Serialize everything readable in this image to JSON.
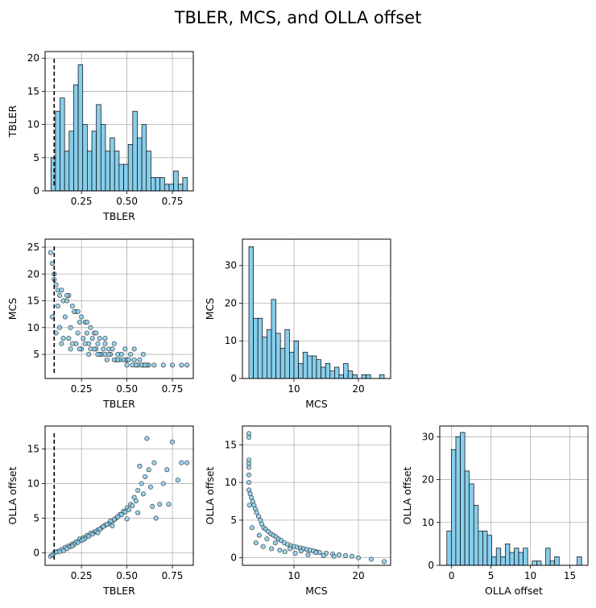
{
  "figure": {
    "title": "TBLER, MCS, and OLLA offset"
  },
  "colors": {
    "bar": "#87CEEB",
    "edge": "#000000",
    "grid": "#b0b0b0",
    "threshold": "#000000"
  },
  "chart_data": [
    {
      "id": "tbler_hist",
      "type": "bar",
      "title": "",
      "xlabel": "TBLER",
      "ylabel": "TBLER",
      "xlim": [
        0.05,
        0.865
      ],
      "ylim": [
        0,
        21
      ],
      "xticks": [
        0.25,
        0.5,
        0.75
      ],
      "xtick_labels": [
        "0.25",
        "0.50",
        "0.75"
      ],
      "yticks": [
        0,
        5,
        10,
        15,
        20
      ],
      "ytick_labels": [
        "0",
        "5",
        "10",
        "15",
        "20"
      ],
      "bin_edges": [
        0.082,
        0.107,
        0.132,
        0.157,
        0.182,
        0.207,
        0.232,
        0.257,
        0.282,
        0.307,
        0.332,
        0.357,
        0.382,
        0.407,
        0.432,
        0.457,
        0.482,
        0.507,
        0.532,
        0.557,
        0.582,
        0.607,
        0.632,
        0.657,
        0.682,
        0.707,
        0.732,
        0.757,
        0.782,
        0.807,
        0.832
      ],
      "counts": [
        5,
        12,
        14,
        6,
        9,
        16,
        19,
        10,
        6,
        9,
        13,
        10,
        6,
        8,
        6,
        4,
        4,
        7,
        12,
        8,
        10,
        6,
        2,
        2,
        2,
        1,
        1,
        3,
        1,
        2
      ],
      "threshold_x": 0.1,
      "grid": true
    },
    {
      "id": "tbler_vs_mcs",
      "type": "scatter",
      "xlabel": "TBLER",
      "ylabel": "MCS",
      "xlim": [
        0.05,
        0.865
      ],
      "ylim": [
        0.5,
        26.5
      ],
      "xticks": [
        0.25,
        0.5,
        0.75
      ],
      "xtick_labels": [
        "0.25",
        "0.50",
        "0.75"
      ],
      "yticks": [
        5,
        10,
        15,
        20,
        25
      ],
      "ytick_labels": [
        "5",
        "10",
        "15",
        "20",
        "25"
      ],
      "x": [
        0.08,
        0.09,
        0.1,
        0.11,
        0.12,
        0.13,
        0.15,
        0.18,
        0.2,
        0.22,
        0.25,
        0.27,
        0.3,
        0.32,
        0.35,
        0.38,
        0.4,
        0.45,
        0.5,
        0.55,
        0.6,
        0.65,
        0.7,
        0.75,
        0.8,
        0.83,
        0.1,
        0.14,
        0.17,
        0.21,
        0.24,
        0.28,
        0.31,
        0.34,
        0.37,
        0.42,
        0.47,
        0.52,
        0.57,
        0.62,
        0.12,
        0.16,
        0.19,
        0.23,
        0.26,
        0.29,
        0.33,
        0.36,
        0.41,
        0.44,
        0.49,
        0.54,
        0.59,
        0.09,
        0.13,
        0.18,
        0.22,
        0.27,
        0.32,
        0.38,
        0.43,
        0.48,
        0.53,
        0.58,
        0.11,
        0.15,
        0.2,
        0.25,
        0.3,
        0.35,
        0.4,
        0.46,
        0.51,
        0.56,
        0.61,
        0.14,
        0.19,
        0.24,
        0.29,
        0.34,
        0.39,
        0.45,
        0.5,
        0.55,
        0.6,
        0.17,
        0.23,
        0.28,
        0.33,
        0.38,
        0.43,
        0.49,
        0.54,
        0.59
      ],
      "y": [
        24,
        22,
        19,
        18,
        17,
        16,
        15,
        16,
        14,
        13,
        12,
        11,
        10,
        9,
        8,
        7,
        6,
        5,
        4,
        3,
        3,
        3,
        3,
        3,
        3,
        3,
        20,
        17,
        15,
        13,
        11,
        9,
        8,
        7,
        6,
        6,
        5,
        5,
        4,
        3,
        14,
        12,
        10,
        9,
        8,
        7,
        6,
        5,
        5,
        4,
        4,
        4,
        3,
        12,
        10,
        8,
        7,
        7,
        6,
        5,
        4,
        4,
        3,
        3,
        9,
        8,
        7,
        6,
        6,
        5,
        5,
        4,
        4,
        3,
        3,
        7,
        6,
        6,
        5,
        5,
        4,
        4,
        3,
        3,
        3,
        16,
        13,
        11,
        9,
        8,
        7,
        6,
        6,
        5
      ],
      "threshold_x": 0.1,
      "grid": true
    },
    {
      "id": "mcs_hist",
      "type": "bar",
      "xlabel": "MCS",
      "ylabel": "MCS",
      "xlim": [
        2,
        25
      ],
      "ylim": [
        0,
        37
      ],
      "xticks": [
        10,
        20
      ],
      "xtick_labels": [
        "10",
        "20"
      ],
      "yticks": [
        0,
        10,
        20,
        30
      ],
      "ytick_labels": [
        "0",
        "10",
        "20",
        "30"
      ],
      "bin_edges": [
        3,
        3.7,
        4.4,
        5.1,
        5.8,
        6.5,
        7.2,
        7.9,
        8.6,
        9.3,
        10.0,
        10.7,
        11.4,
        12.1,
        12.8,
        13.5,
        14.2,
        14.9,
        15.6,
        16.3,
        17.0,
        17.7,
        18.4,
        19.1,
        19.8,
        20.5,
        21.2,
        21.9,
        22.6,
        23.3,
        24.0
      ],
      "counts": [
        35,
        16,
        16,
        11,
        13,
        21,
        12,
        8,
        13,
        7,
        10,
        4,
        7,
        6,
        6,
        5,
        3,
        4,
        2,
        3,
        1,
        4,
        2,
        1,
        0,
        1,
        1,
        0,
        0,
        1
      ],
      "grid": true
    },
    {
      "id": "tbler_vs_olla",
      "type": "scatter",
      "xlabel": "TBLER",
      "ylabel": "OLLA offset",
      "xlim": [
        0.05,
        0.865
      ],
      "ylim": [
        -1.8,
        18.3
      ],
      "xticks": [
        0.25,
        0.5,
        0.75
      ],
      "xtick_labels": [
        "0.25",
        "0.50",
        "0.75"
      ],
      "yticks": [
        0,
        5,
        10,
        15
      ],
      "ytick_labels": [
        "0",
        "5",
        "10",
        "15"
      ],
      "x": [
        0.08,
        0.09,
        0.1,
        0.12,
        0.14,
        0.16,
        0.18,
        0.2,
        0.22,
        0.24,
        0.26,
        0.28,
        0.3,
        0.32,
        0.34,
        0.36,
        0.38,
        0.4,
        0.42,
        0.44,
        0.46,
        0.48,
        0.5,
        0.52,
        0.54,
        0.56,
        0.58,
        0.6,
        0.62,
        0.65,
        0.7,
        0.75,
        0.8,
        0.83,
        0.15,
        0.19,
        0.23,
        0.27,
        0.31,
        0.35,
        0.39,
        0.43,
        0.47,
        0.51,
        0.55,
        0.59,
        0.63,
        0.68,
        0.72,
        0.11,
        0.17,
        0.21,
        0.25,
        0.29,
        0.33,
        0.37,
        0.41,
        0.45,
        0.49,
        0.53,
        0.57,
        0.61,
        0.66,
        0.73,
        0.78,
        0.13,
        0.2,
        0.26,
        0.34,
        0.42,
        0.5,
        0.56,
        0.64
      ],
      "y": [
        -0.5,
        -0.3,
        0,
        0.2,
        0.5,
        0.8,
        1,
        1.3,
        1.6,
        2,
        2.2,
        2.5,
        2.8,
        3,
        3.3,
        3.6,
        4,
        4.2,
        4.5,
        5,
        5.5,
        6,
        6.5,
        7,
        8,
        9,
        10,
        11,
        12,
        13,
        10,
        16,
        13,
        13,
        0.3,
        0.9,
        1.5,
        2.1,
        2.7,
        3.4,
        4.1,
        4.8,
        5.5,
        6.2,
        7.5,
        8.5,
        9.5,
        7,
        12,
        0.1,
        0.6,
        1.2,
        1.8,
        2.4,
        3.1,
        3.8,
        4.6,
        5.2,
        5.9,
        6.8,
        12.5,
        16.5,
        5,
        7,
        10.5,
        0.2,
        1.0,
        1.9,
        2.9,
        3.9,
        4.9,
        5.8,
        6.7
      ],
      "threshold_x": 0.1,
      "grid": true
    },
    {
      "id": "mcs_vs_olla",
      "type": "scatter",
      "xlabel": "MCS",
      "ylabel": "OLLA offset",
      "xlim": [
        2,
        25
      ],
      "ylim": [
        -1.0,
        17.5
      ],
      "xticks": [
        10,
        20
      ],
      "xtick_labels": [
        "10",
        "20"
      ],
      "yticks": [
        0,
        5,
        10,
        15
      ],
      "ytick_labels": [
        "0",
        "5",
        "10",
        "15"
      ],
      "x": [
        3,
        3,
        3,
        3,
        3,
        3,
        3,
        3,
        3.2,
        3.4,
        3.6,
        3.8,
        4,
        4.2,
        4.5,
        4.8,
        5,
        5.3,
        5.6,
        6,
        6.4,
        6.8,
        7.2,
        7.6,
        8,
        8.5,
        9,
        9.5,
        10,
        10.5,
        11,
        11.5,
        12,
        12.5,
        13,
        13.5,
        14,
        15,
        16,
        17,
        18,
        19,
        20,
        22,
        24,
        3.1,
        3.5,
        4.1,
        4.6,
        5.2,
        5.8,
        6.5,
        7.1,
        7.8,
        8.6,
        9.4,
        10.2,
        11.1,
        12.2,
        13.4,
        14.6,
        16.2
      ],
      "y": [
        16.5,
        16,
        13,
        12.5,
        12,
        11,
        10,
        9,
        8.5,
        8,
        7.5,
        7,
        6.5,
        6,
        5.5,
        5,
        4.5,
        4,
        3.8,
        3.5,
        3.2,
        3,
        2.8,
        2.5,
        2.3,
        2,
        1.8,
        1.6,
        1.5,
        1.4,
        1.3,
        1.2,
        1.1,
        1,
        0.9,
        0.8,
        0.7,
        0.6,
        0.5,
        0.4,
        0.3,
        0.2,
        0,
        -0.2,
        -0.5,
        7,
        4,
        2,
        3,
        1.5,
        2.5,
        1.2,
        2,
        1,
        0.8,
        1.2,
        0.6,
        0.9,
        0.4,
        0.7,
        0.3,
        0.2
      ],
      "grid": true
    },
    {
      "id": "olla_hist",
      "type": "bar",
      "xlabel": "OLLA offset",
      "ylabel": "OLLA offset",
      "xlim": [
        -1.5,
        17.3
      ],
      "ylim": [
        0,
        32.5
      ],
      "xticks": [
        0,
        5,
        10,
        15
      ],
      "xtick_labels": [
        "0",
        "5",
        "10",
        "15"
      ],
      "yticks": [
        0,
        10,
        20,
        30
      ],
      "ytick_labels": [
        "0",
        "10",
        "20",
        "30"
      ],
      "bin_edges": [
        -0.6,
        -0.03,
        0.54,
        1.11,
        1.68,
        2.25,
        2.82,
        3.39,
        3.96,
        4.53,
        5.1,
        5.67,
        6.24,
        6.81,
        7.38,
        7.95,
        8.52,
        9.09,
        9.66,
        10.23,
        10.8,
        11.37,
        11.94,
        12.51,
        13.08,
        13.65,
        14.22,
        14.79,
        15.36,
        15.93,
        16.5
      ],
      "counts": [
        8,
        27,
        30,
        31,
        22,
        19,
        14,
        8,
        8,
        7,
        2,
        4,
        2,
        5,
        3,
        4,
        3,
        4,
        0,
        1,
        1,
        0,
        4,
        1,
        2,
        0,
        0,
        0,
        0,
        2
      ],
      "grid": true
    }
  ]
}
